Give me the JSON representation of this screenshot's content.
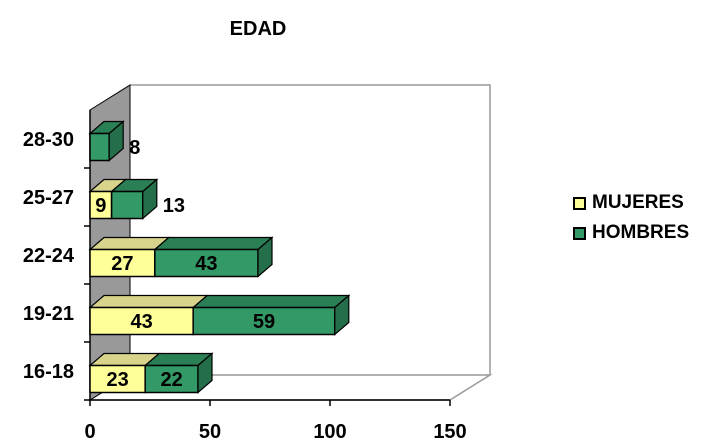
{
  "chart_data": {
    "type": "bar",
    "orientation": "horizontal",
    "stacked": true,
    "three_d": true,
    "title": "EDAD",
    "categories": [
      "16-18",
      "19-21",
      "22-24",
      "25-27",
      "28-30"
    ],
    "series": [
      {
        "name": "MUJERES",
        "values": [
          23,
          43,
          27,
          9,
          null
        ],
        "color": "#ffff99"
      },
      {
        "name": "HOMBRES",
        "values": [
          22,
          59,
          43,
          13,
          8
        ],
        "color": "#339966"
      }
    ],
    "xlim": [
      0,
      150
    ],
    "xticks": [
      0,
      50,
      100,
      150
    ],
    "legend_position": "right",
    "wall_color": "#999999"
  }
}
